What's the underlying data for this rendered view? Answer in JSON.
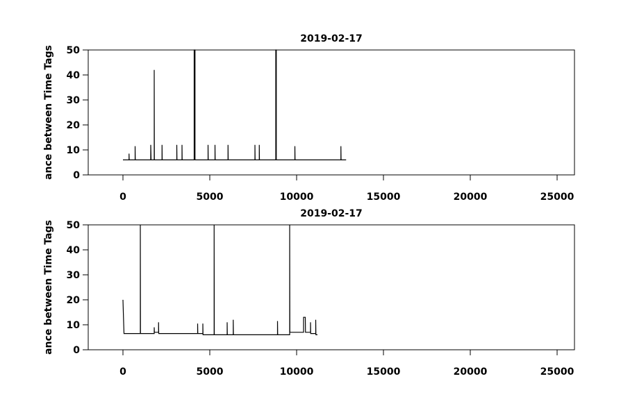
{
  "chart_data": [
    {
      "type": "line",
      "title": "2019-02-17",
      "y_label": "ance between Time Tags",
      "color": "#000000",
      "x": [
        0,
        350,
        350,
        360,
        700,
        700,
        710,
        1600,
        1600,
        1620,
        1800,
        1800,
        1810,
        2250,
        2250,
        2260,
        3100,
        3100,
        3110,
        3400,
        3400,
        3410,
        4100,
        4100,
        4150,
        4150,
        4900,
        4900,
        4910,
        5300,
        5300,
        5310,
        6050,
        6050,
        6060,
        7600,
        7600,
        7610,
        7850,
        7850,
        7860,
        8800,
        8800,
        8830,
        8830,
        9900,
        9900,
        9910,
        12550,
        12550,
        12560,
        12850
      ],
      "values": [
        6,
        6,
        8.5,
        6,
        6,
        11.5,
        6,
        6,
        12,
        6,
        6,
        42,
        6,
        6,
        12,
        6,
        6,
        12,
        6,
        6,
        12,
        6,
        6,
        50,
        50,
        6,
        6,
        12,
        6,
        6,
        12,
        6,
        6,
        12,
        6,
        6,
        12,
        6,
        6,
        12,
        6,
        6,
        50,
        50,
        6,
        6,
        11.5,
        6,
        6,
        11.5,
        6,
        6
      ],
      "xlim": [
        -2000,
        26000
      ],
      "xticks": [
        0,
        5000,
        10000,
        15000,
        20000,
        25000
      ],
      "ylim": [
        0,
        50
      ],
      "yticks": [
        0,
        10,
        20,
        30,
        40,
        50
      ]
    },
    {
      "type": "line",
      "title": "2019-02-17",
      "y_label": "ance between Time Tags",
      "color": "#000000",
      "x": [
        0,
        30,
        60,
        1000,
        1000,
        1010,
        1800,
        1800,
        1810,
        2050,
        2050,
        2060,
        4300,
        4300,
        4310,
        4600,
        4600,
        4610,
        5250,
        5250,
        5260,
        6000,
        6000,
        6010,
        6350,
        6350,
        6360,
        8900,
        8900,
        8910,
        9600,
        9600,
        9610,
        10400,
        10400,
        10500,
        10510,
        10800,
        10800,
        10810,
        11100,
        11100,
        11110,
        11200
      ],
      "values": [
        20,
        13,
        6.5,
        6.5,
        50,
        6.5,
        6.5,
        9,
        7,
        7,
        11,
        6.5,
        6.5,
        10.5,
        6.5,
        6.5,
        10.5,
        6,
        6,
        50,
        6,
        6,
        11,
        6,
        6,
        12,
        6,
        6,
        11.5,
        6,
        6,
        50,
        7,
        7,
        13,
        13,
        7,
        7,
        11,
        6.5,
        6.5,
        12,
        6,
        6
      ],
      "xlim": [
        -2000,
        26000
      ],
      "xticks": [
        0,
        5000,
        10000,
        15000,
        20000,
        25000
      ],
      "ylim": [
        0,
        50
      ],
      "yticks": [
        0,
        10,
        20,
        30,
        40,
        50
      ]
    }
  ]
}
